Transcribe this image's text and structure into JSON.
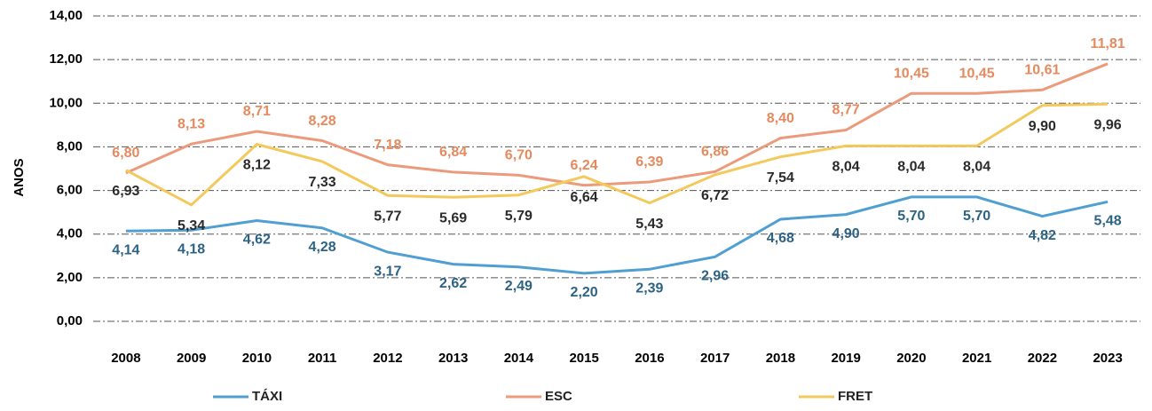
{
  "chart_data": {
    "type": "line",
    "ylabel": "ANOS",
    "categories": [
      "2008",
      "2009",
      "2010",
      "2011",
      "2012",
      "2013",
      "2014",
      "2015",
      "2016",
      "2017",
      "2018",
      "2019",
      "2020",
      "2021",
      "2022",
      "2023"
    ],
    "ylim": [
      0,
      14
    ],
    "yticks": [
      {
        "value": 0,
        "label": "0,00"
      },
      {
        "value": 2,
        "label": "2,00"
      },
      {
        "value": 4,
        "label": "4,00"
      },
      {
        "value": 6,
        "label": "6,00"
      },
      {
        "value": 8,
        "label": "8,00"
      },
      {
        "value": 10,
        "label": "10,00"
      },
      {
        "value": 12,
        "label": "12,00"
      },
      {
        "value": 14,
        "label": "14,00"
      }
    ],
    "grid": true,
    "legend": "bottom",
    "series": [
      {
        "name": "TÁXI",
        "color": "#4f9fd2",
        "label_color": "#2c6384",
        "values": [
          4.14,
          4.18,
          4.62,
          4.28,
          3.17,
          2.62,
          2.49,
          2.2,
          2.39,
          2.96,
          4.68,
          4.9,
          5.7,
          5.7,
          4.82,
          5.48
        ],
        "value_labels": [
          "4,14",
          "4,18",
          "4,62",
          "4,28",
          "3,17",
          "2,62",
          "2,49",
          "2,20",
          "2,39",
          "2,96",
          "4,68",
          "4,90",
          "5,70",
          "5,70",
          "4,82",
          "5,48"
        ]
      },
      {
        "name": "ESC",
        "color": "#eb9a7b",
        "label_color": "#e58a5e",
        "values": [
          6.8,
          8.13,
          8.71,
          8.28,
          7.18,
          6.84,
          6.7,
          6.24,
          6.39,
          6.86,
          8.4,
          8.77,
          10.45,
          10.45,
          10.61,
          11.81
        ],
        "value_labels": [
          "6,80",
          "8,13",
          "8,71",
          "8,28",
          "7,18",
          "6,84",
          "6,70",
          "6,24",
          "6,39",
          "6,86",
          "8,40",
          "8,77",
          "10,45",
          "10,45",
          "10,61",
          "11,81"
        ]
      },
      {
        "name": "FRET",
        "color": "#f3c95c",
        "label_color": "#2b2b2b",
        "values": [
          6.93,
          5.34,
          8.12,
          7.33,
          5.77,
          5.69,
          5.79,
          6.64,
          5.43,
          6.72,
          7.54,
          8.04,
          8.04,
          8.04,
          9.9,
          9.96
        ],
        "value_labels": [
          "6,93",
          "5,34",
          "8,12",
          "7,33",
          "5,77",
          "5,69",
          "5,79",
          "6,64",
          "5,43",
          "6,72",
          "7,54",
          "8,04",
          "8,04",
          "8,04",
          "9,90",
          "9,96"
        ]
      }
    ]
  }
}
